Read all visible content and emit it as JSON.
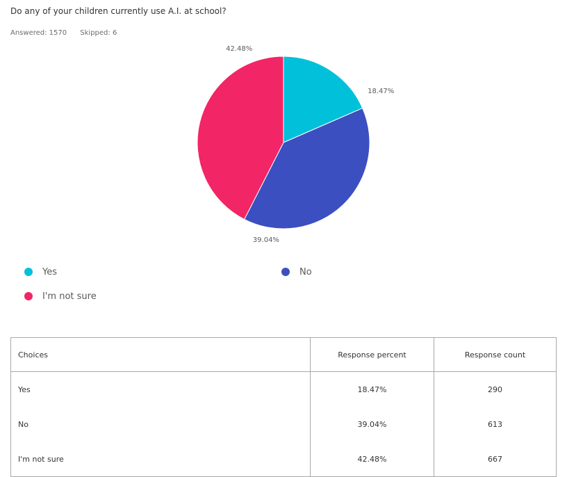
{
  "question": "Do any of your children currently use A.I. at school?",
  "meta": {
    "answered": "Answered: 1570",
    "skipped": "Skipped: 6"
  },
  "chart_data": {
    "type": "pie",
    "categories": [
      "Yes",
      "No",
      "I'm not sure"
    ],
    "values": [
      18.47,
      39.04,
      42.48
    ],
    "labels": [
      "18.47%",
      "39.04%",
      "42.48%"
    ],
    "colors": [
      "#00C1D9",
      "#3B4FC0",
      "#F22566"
    ],
    "legend_position": "bottom"
  },
  "table": {
    "headers": [
      "Choices",
      "Response percent",
      "Response count"
    ],
    "rows": [
      [
        "Yes",
        "18.47%",
        "290"
      ],
      [
        "No",
        "39.04%",
        "613"
      ],
      [
        "I'm not sure",
        "42.48%",
        "667"
      ]
    ]
  }
}
